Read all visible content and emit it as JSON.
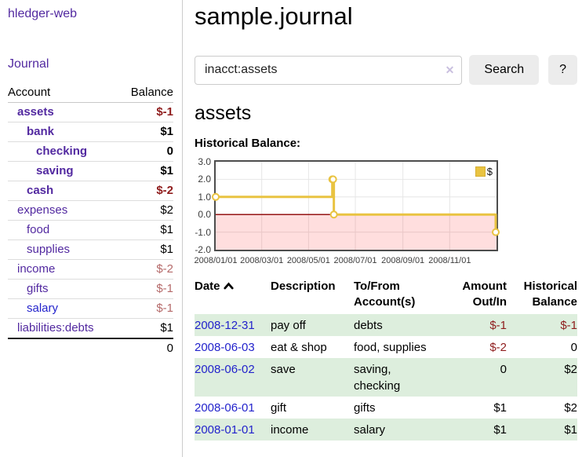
{
  "sidebar": {
    "app_title": "hledger-web",
    "journal_label": "Journal",
    "accounts_headers": {
      "account": "Account",
      "balance": "Balance"
    },
    "accounts": [
      {
        "name": "assets",
        "balance": "$-1",
        "depth": 1,
        "bold": true,
        "balance_style": "neg-strong"
      },
      {
        "name": "bank",
        "balance": "$1",
        "depth": 2,
        "bold": true
      },
      {
        "name": "checking",
        "balance": "0",
        "depth": 3,
        "bold": true
      },
      {
        "name": "saving",
        "balance": "$1",
        "depth": 3,
        "bold": true
      },
      {
        "name": "cash",
        "balance": "$-2",
        "depth": 2,
        "bold": true,
        "balance_style": "neg-strong"
      },
      {
        "name": "expenses",
        "balance": "$2",
        "depth": 1
      },
      {
        "name": "food",
        "balance": "$1",
        "depth": 2
      },
      {
        "name": "supplies",
        "balance": "$1",
        "depth": 2
      },
      {
        "name": "income",
        "balance": "$-2",
        "depth": 1,
        "balance_style": "neg-soft"
      },
      {
        "name": "gifts",
        "balance": "$-1",
        "depth": 2,
        "balance_style": "neg-soft"
      },
      {
        "name": "salary",
        "balance": "$-1",
        "depth": 2,
        "balance_style": "neg-soft",
        "link_style": "blue"
      },
      {
        "name": "liabilities:debts",
        "balance": "$1",
        "depth": 1
      }
    ],
    "accounts_total": "0"
  },
  "main": {
    "page_title": "sample.journal",
    "search": {
      "value": "inacct:assets",
      "clear_icon": "✕",
      "button_label": "Search",
      "help_label": "?"
    },
    "account_heading": "assets",
    "chart_label": "Historical Balance:"
  },
  "register": {
    "headers": {
      "date": "Date",
      "description": "Description",
      "accounts": "To/From Account(s)",
      "amount": "Amount Out/In",
      "balance": "Historical Balance"
    },
    "sort": "ascending",
    "rows": [
      {
        "date": "2008-12-31",
        "description": "pay off",
        "accounts": "debts",
        "amount": "$-1",
        "balance": "$-1",
        "amount_negative": true,
        "balance_negative": true
      },
      {
        "date": "2008-06-03",
        "description": "eat & shop",
        "accounts": "food, supplies",
        "amount": "$-2",
        "balance": "0",
        "amount_negative": true,
        "balance_negative": false
      },
      {
        "date": "2008-06-02",
        "description": "save",
        "accounts": "saving, checking",
        "amount": "0",
        "balance": "$2",
        "amount_negative": false,
        "balance_negative": false
      },
      {
        "date": "2008-06-01",
        "description": "gift",
        "accounts": "gifts",
        "amount": "$1",
        "balance": "$2",
        "amount_negative": false,
        "balance_negative": false
      },
      {
        "date": "2008-01-01",
        "description": "income",
        "accounts": "salary",
        "amount": "$1",
        "balance": "$1",
        "amount_negative": false,
        "balance_negative": false
      }
    ]
  },
  "chart_data": {
    "type": "line",
    "title": "Historical Balance:",
    "step": true,
    "x_range": [
      "2008-01-01",
      "2009-01-01"
    ],
    "ylim": [
      -2,
      3
    ],
    "y_ticks": [
      "3.0",
      "2.0",
      "1.0",
      "0.0",
      "-1.0",
      "-2.0"
    ],
    "x_ticks": [
      {
        "label": "2008/01/01",
        "date": "2008-01-01"
      },
      {
        "label": "2008/03/01",
        "date": "2008-03-01"
      },
      {
        "label": "2008/05/01",
        "date": "2008-05-01"
      },
      {
        "label": "2008/07/01",
        "date": "2008-07-01"
      },
      {
        "label": "2008/09/01",
        "date": "2008-09-01"
      },
      {
        "label": "2008/11/01",
        "date": "2008-11-01"
      }
    ],
    "series": [
      {
        "name": "$",
        "color": "#e9c341",
        "points": [
          [
            "2008-01-01",
            1
          ],
          [
            "2008-06-01",
            2
          ],
          [
            "2008-06-02",
            2
          ],
          [
            "2008-06-03",
            0
          ],
          [
            "2008-12-31",
            -1
          ]
        ]
      }
    ],
    "legend_position": "top-right",
    "grid": true,
    "grid_color": "#e6e6e6",
    "negative_region_color": "rgba(255,0,0,0.13)",
    "zero_line_color": "#8b0000",
    "border_color": "#4d4d4d"
  },
  "colors": {
    "link_purple": "#5229a0",
    "link_blue": "#2323cc",
    "negative_strong": "#8f1d1d",
    "negative_soft": "#b56a6a",
    "row_stripe_green": "#ddeedd",
    "series_gold": "#e9c341"
  }
}
